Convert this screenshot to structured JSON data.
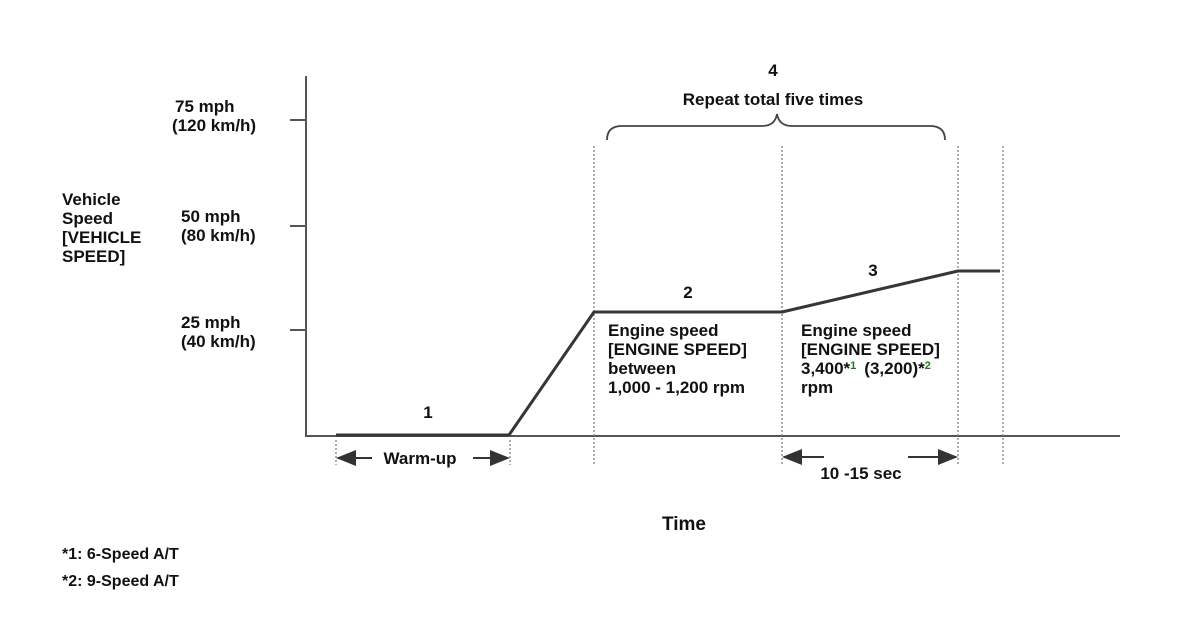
{
  "y_axis": {
    "label_lines": [
      "Vehicle",
      "Speed",
      "[VEHICLE",
      "SPEED]"
    ],
    "ticks": [
      {
        "mph": "75 mph",
        "kmh": "(120 km/h)"
      },
      {
        "mph": "50 mph",
        "kmh": "(80 km/h)"
      },
      {
        "mph": "25 mph",
        "kmh": "(40 km/h)"
      }
    ]
  },
  "x_axis": {
    "label": "Time"
  },
  "phases": {
    "p1": {
      "num": "1",
      "span_label": "Warm-up"
    },
    "p2": {
      "num": "2",
      "lines": [
        "Engine speed",
        "[ENGINE SPEED]",
        "between",
        "1,000 - 1,200 rpm"
      ]
    },
    "p3": {
      "num": "3",
      "line1": "Engine speed",
      "line2": "[ENGINE SPEED]",
      "val1": "3,400*",
      "sup1": "1",
      "val2": "(3,200)*",
      "sup2": "2",
      "line4": "rpm",
      "duration": "10 -15 sec"
    },
    "p4": {
      "num": "4",
      "label": "Repeat total five times"
    }
  },
  "footnotes": [
    "*1: 6-Speed A/T",
    "*2: 9-Speed A/T"
  ],
  "colors": {
    "line": "#3a3434",
    "footnote_marker": "#1a7a1a"
  }
}
